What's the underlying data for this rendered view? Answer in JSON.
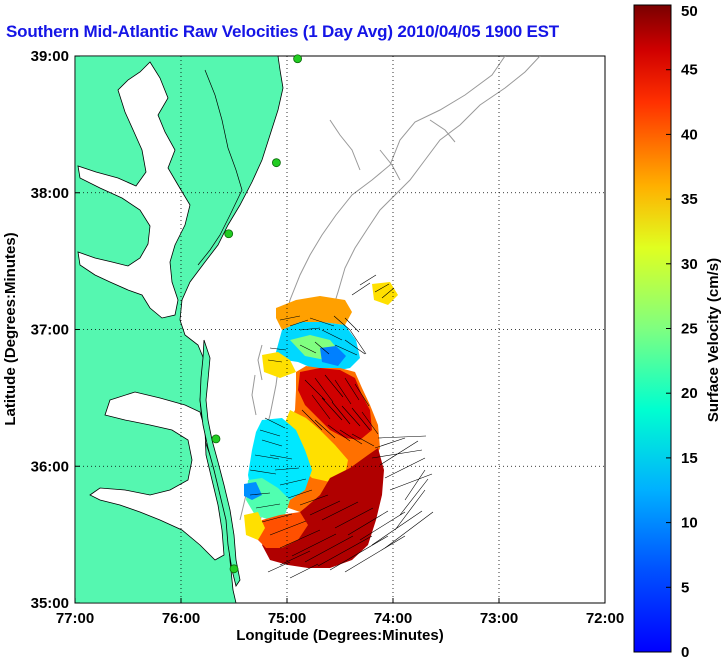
{
  "title": "Southern Mid-Atlantic Raw Velocities (1 Day Avg) 2010/04/05 1900 EST",
  "map": {
    "xlabel": "Longitude (Degrees:Minutes)",
    "ylabel": "Latitude (Degrees:Minutes)",
    "lon_ticks": [
      "77:00",
      "76:00",
      "75:00",
      "74:00",
      "73:00",
      "72:00"
    ],
    "lat_ticks": [
      "39:00",
      "38:00",
      "37:00",
      "36:00",
      "35:00"
    ],
    "lon_range": [
      -77,
      -72
    ],
    "lat_range": [
      35,
      39
    ],
    "grid": true,
    "colors": {
      "land": "#55f7b0",
      "ocean": "#ffffff",
      "coastline": "#000000",
      "bathymetry": "#999999",
      "station": "#22cc22"
    },
    "stations": [
      {
        "name": "station-1",
        "lon": -74.9,
        "lat": 38.98
      },
      {
        "name": "station-2",
        "lon": -75.1,
        "lat": 38.22
      },
      {
        "name": "station-3",
        "lon": -75.55,
        "lat": 37.7
      },
      {
        "name": "station-4",
        "lon": -75.67,
        "lat": 36.2
      },
      {
        "name": "station-5",
        "lon": -75.5,
        "lat": 35.25
      }
    ]
  },
  "colorbar": {
    "label": "Surface Velocity (cm/s)",
    "min": 0,
    "max": 50,
    "ticks": [
      "0",
      "5",
      "10",
      "15",
      "20",
      "25",
      "30",
      "35",
      "40",
      "45",
      "50"
    ],
    "colormap": "jet"
  }
}
